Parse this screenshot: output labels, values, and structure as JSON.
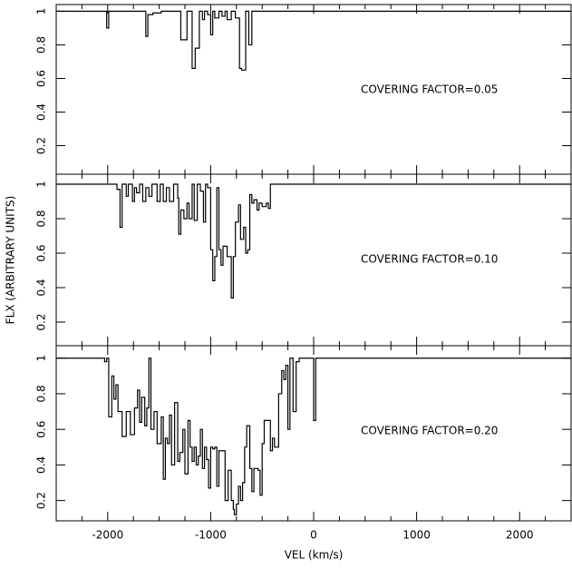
{
  "chart_data": [
    {
      "type": "line",
      "step": true,
      "color": "#000000",
      "annotation": "COVERING FACTOR=0.05",
      "xlim": [
        -2500,
        2500
      ],
      "xticks": [
        -2000,
        -1000,
        0,
        1000,
        2000
      ],
      "xminorticks": [
        -2250,
        -1750,
        -1500,
        -1250,
        -750,
        -500,
        -250,
        250,
        500,
        750,
        1250,
        1500,
        1750,
        2250
      ],
      "ylim": [
        0.03,
        1.04
      ],
      "yticks": [
        0.2,
        0.4,
        0.6,
        0.8,
        1
      ],
      "x": [
        -2500,
        -2010,
        -1990,
        -1630,
        -1610,
        -1560,
        -1480,
        -1290,
        -1230,
        -1180,
        -1150,
        -1110,
        -1080,
        -1060,
        -1030,
        -1000,
        -980,
        -960,
        -920,
        -890,
        -860,
        -840,
        -800,
        -760,
        -720,
        -700,
        -660,
        -630,
        -600,
        2500
      ],
      "values": [
        1,
        0.9,
        1,
        0.85,
        0.98,
        0.99,
        1,
        0.83,
        1,
        0.66,
        0.78,
        1,
        0.95,
        1,
        0.98,
        0.86,
        1,
        0.96,
        1,
        0.97,
        1,
        0.95,
        1,
        0.96,
        0.66,
        0.65,
        1,
        0.8,
        1,
        1
      ]
    },
    {
      "type": "line",
      "step": true,
      "color": "#000000",
      "annotation": "COVERING FACTOR=0.10",
      "ylabel": "FLX (ARBITRARY UNITS)",
      "xlim": [
        -2500,
        2500
      ],
      "xticks": [
        -2000,
        -1000,
        0,
        1000,
        2000
      ],
      "xminorticks": [
        -2250,
        -1750,
        -1500,
        -1250,
        -750,
        -500,
        -250,
        250,
        500,
        750,
        1250,
        1500,
        1750,
        2250
      ],
      "ylim": [
        0.063,
        1.058
      ],
      "yticks": [
        0.2,
        0.4,
        0.6,
        0.8,
        1
      ],
      "x": [
        -2500,
        -1910,
        -1880,
        -1860,
        -1820,
        -1800,
        -1760,
        -1740,
        -1720,
        -1690,
        -1660,
        -1630,
        -1600,
        -1570,
        -1520,
        -1490,
        -1460,
        -1430,
        -1400,
        -1360,
        -1320,
        -1310,
        -1290,
        -1260,
        -1230,
        -1210,
        -1180,
        -1160,
        -1130,
        -1100,
        -1070,
        -1050,
        -1030,
        -1000,
        -980,
        -960,
        -940,
        -920,
        -900,
        -880,
        -840,
        -800,
        -780,
        -760,
        -730,
        -710,
        -680,
        -660,
        -640,
        -620,
        -600,
        -580,
        -550,
        -530,
        -500,
        -460,
        -440,
        -420,
        2500
      ],
      "values": [
        1,
        0.97,
        0.75,
        1,
        0.93,
        1,
        0.9,
        0.98,
        0.95,
        1,
        0.9,
        0.98,
        0.93,
        1,
        0.9,
        1,
        0.9,
        0.98,
        0.9,
        1,
        0.92,
        0.71,
        0.85,
        0.8,
        0.89,
        0.8,
        1,
        0.79,
        1,
        0.96,
        0.78,
        1,
        0.98,
        0.62,
        0.44,
        0.58,
        0.98,
        0.62,
        0.53,
        0.64,
        0.58,
        0.34,
        0.58,
        0.78,
        0.88,
        0.68,
        0.75,
        0.6,
        0.62,
        0.94,
        0.89,
        0.91,
        0.85,
        0.89,
        0.87,
        0.89,
        0.86,
        1,
        1
      ]
    },
    {
      "type": "line",
      "step": true,
      "color": "#000000",
      "annotation": "COVERING FACTOR=0.20",
      "xlabel": "VEL (km/s)",
      "xlim": [
        -2500,
        2500
      ],
      "xticks": [
        -2000,
        -1000,
        0,
        1000,
        2000
      ],
      "xminorticks": [
        -2250,
        -1750,
        -1500,
        -1250,
        -750,
        -500,
        -250,
        250,
        500,
        750,
        1250,
        1500,
        1750,
        2250
      ],
      "ylim": [
        0.086,
        1.07
      ],
      "yticks": [
        0.2,
        0.4,
        0.6,
        0.8,
        1
      ],
      "x": [
        -2500,
        -2030,
        -2010,
        -1990,
        -1960,
        -1940,
        -1920,
        -1900,
        -1860,
        -1820,
        -1780,
        -1740,
        -1710,
        -1690,
        -1670,
        -1640,
        -1620,
        -1600,
        -1580,
        -1550,
        -1520,
        -1480,
        -1460,
        -1440,
        -1420,
        -1400,
        -1380,
        -1350,
        -1320,
        -1300,
        -1270,
        -1250,
        -1220,
        -1200,
        -1180,
        -1160,
        -1140,
        -1120,
        -1100,
        -1080,
        -1060,
        -1040,
        -1020,
        -1000,
        -980,
        -960,
        -940,
        -920,
        -880,
        -860,
        -830,
        -800,
        -780,
        -770,
        -750,
        -730,
        -710,
        -690,
        -670,
        -650,
        -620,
        -600,
        -580,
        -540,
        -520,
        -500,
        -480,
        -450,
        -420,
        -400,
        -380,
        -340,
        -310,
        -290,
        -270,
        -250,
        -230,
        -200,
        -170,
        -140,
        0,
        20,
        2500
      ],
      "values": [
        1,
        0.98,
        1,
        0.67,
        0.9,
        0.77,
        0.85,
        0.7,
        0.56,
        0.7,
        0.57,
        0.72,
        0.82,
        0.64,
        0.78,
        0.62,
        0.72,
        1,
        0.6,
        0.7,
        0.52,
        0.67,
        0.32,
        0.55,
        0.52,
        0.68,
        0.4,
        0.75,
        0.42,
        0.47,
        0.6,
        0.35,
        0.65,
        0.5,
        0.42,
        0.5,
        0.4,
        0.45,
        0.6,
        0.38,
        0.5,
        0.43,
        0.27,
        0.5,
        0.49,
        0.5,
        0.28,
        0.48,
        0.48,
        0.2,
        0.37,
        0.2,
        0.15,
        0.12,
        0.18,
        0.28,
        0.2,
        0.3,
        0.5,
        0.62,
        0.38,
        0.25,
        0.38,
        0.37,
        0.23,
        0.52,
        0.65,
        0.65,
        0.48,
        0.55,
        0.5,
        0.8,
        0.93,
        0.88,
        0.96,
        0.6,
        1,
        0.7,
        0.98,
        1,
        0.65,
        1,
        1
      ]
    }
  ]
}
